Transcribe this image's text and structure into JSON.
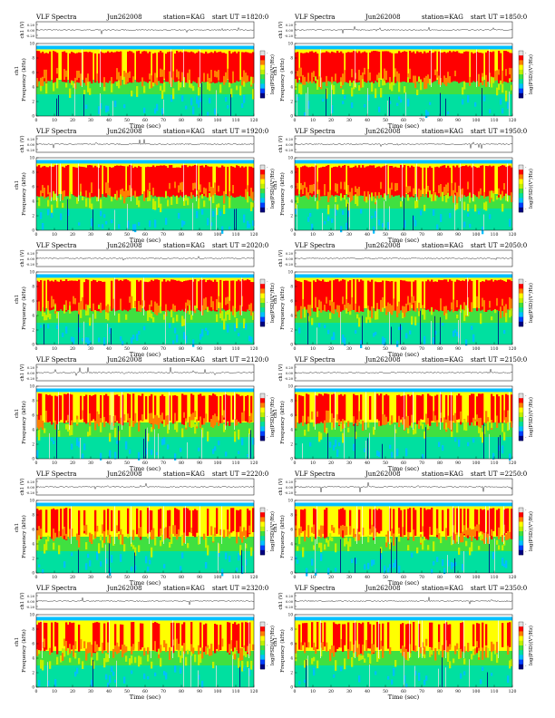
{
  "page": {
    "title_prefix": "VLF Spectra",
    "date_label": "Jun262008",
    "station_label": "station=KAG",
    "start_prefix": "start  UT  ="
  },
  "legend": {
    "colorbar_label": "log(PSD)(V²/Hz)",
    "colorbar_ticks": [
      "-",
      "-",
      "-"
    ],
    "colors": [
      "#000080",
      "#0040ff",
      "#00c0ff",
      "#00e0a0",
      "#40e040",
      "#c0f000",
      "#ffff00",
      "#ff8000",
      "#ff0000",
      "#e0e0e0"
    ]
  },
  "chart_data": [
    {
      "type": "heatmap",
      "panel": "1820",
      "title": "VLF Spectra",
      "date": "Jun262008",
      "station": "station=KAG",
      "start_ut": "1820:0",
      "xlabel": "Time  (sec)",
      "ylabel": "Frequency  (kHz)",
      "y2label": "ch1",
      "ts_label": "ch1 (V)",
      "ts_ticks": [
        "0.20",
        "0.00",
        "-0.20"
      ],
      "xlim": [
        0,
        120
      ],
      "ylim": [
        0,
        10
      ],
      "x_ticks": [
        0,
        10,
        20,
        30,
        40,
        50,
        60,
        70,
        80,
        90,
        100,
        110,
        120
      ],
      "y_ticks": [
        0,
        2,
        4,
        6,
        8,
        10
      ],
      "band_top_khz": 9.2,
      "intensity": "high"
    },
    {
      "type": "heatmap",
      "panel": "1850",
      "title": "VLF Spectra",
      "date": "Jun262008",
      "station": "station=KAG",
      "start_ut": "1850:0",
      "xlabel": "Time  (sec)",
      "ylabel": "Frequency  (kHz)",
      "y2label": "ch1",
      "ts_label": "ch1 (V)",
      "ts_ticks": [
        "0.20",
        "0.00",
        "-0.20"
      ],
      "xlim": [
        0,
        120
      ],
      "ylim": [
        0,
        10
      ],
      "x_ticks": [
        0,
        10,
        20,
        30,
        40,
        50,
        60,
        70,
        80,
        90,
        100,
        110,
        120
      ],
      "y_ticks": [
        0,
        2,
        4,
        6,
        8,
        10
      ],
      "band_top_khz": 9.2,
      "intensity": "high"
    },
    {
      "type": "heatmap",
      "panel": "1920",
      "title": "VLF Spectra",
      "date": "Jun262008",
      "station": "station=KAG",
      "start_ut": "1920:0",
      "xlabel": "Time  (sec)",
      "ylabel": "Frequency  (kHz)",
      "y2label": "ch1",
      "ts_label": "ch1 (V)",
      "ts_ticks": [
        "0.20",
        "0.00",
        "-0.20"
      ],
      "xlim": [
        0,
        120
      ],
      "ylim": [
        0,
        10
      ],
      "x_ticks": [
        0,
        10,
        20,
        30,
        40,
        50,
        60,
        70,
        80,
        90,
        100,
        110,
        120
      ],
      "y_ticks": [
        0,
        2,
        4,
        6,
        8,
        10
      ],
      "band_top_khz": 9.2,
      "intensity": "high"
    },
    {
      "type": "heatmap",
      "panel": "1950",
      "title": "VLF Spectra",
      "date": "Jun262008",
      "station": "station=KAG",
      "start_ut": "1950:0",
      "xlabel": "Time  (sec)",
      "ylabel": "Frequency  (kHz)",
      "y2label": "ch1",
      "ts_label": "ch1 (V)",
      "ts_ticks": [
        "0.20",
        "0.00",
        "-0.20"
      ],
      "xlim": [
        0,
        120
      ],
      "ylim": [
        0,
        10
      ],
      "x_ticks": [
        0,
        10,
        20,
        30,
        40,
        50,
        60,
        70,
        80,
        90,
        100,
        110,
        120
      ],
      "y_ticks": [
        0,
        2,
        4,
        6,
        8,
        10
      ],
      "band_top_khz": 9.2,
      "intensity": "high"
    },
    {
      "type": "heatmap",
      "panel": "2020",
      "title": "VLF Spectra",
      "date": "Jun262008",
      "station": "station=KAG",
      "start_ut": "2020:0",
      "xlabel": "Time  (sec)",
      "ylabel": "Frequency  (kHz)",
      "y2label": "ch1",
      "ts_label": "ch1 (V)",
      "ts_ticks": [
        "0.20",
        "0.00",
        "-0.20"
      ],
      "xlim": [
        0,
        120
      ],
      "ylim": [
        0,
        10
      ],
      "x_ticks": [
        0,
        10,
        20,
        30,
        40,
        50,
        60,
        70,
        80,
        90,
        100,
        110,
        120
      ],
      "y_ticks": [
        0,
        2,
        4,
        6,
        8,
        10
      ],
      "band_top_khz": 9.2,
      "intensity": "high"
    },
    {
      "type": "heatmap",
      "panel": "2050",
      "title": "VLF Spectra",
      "date": "Jun262008",
      "station": "station=KAG",
      "start_ut": "2050:0",
      "xlabel": "Time  (sec)",
      "ylabel": "Frequency  (kHz)",
      "y2label": "ch1",
      "ts_label": "ch1 (V)",
      "ts_ticks": [
        "0.20",
        "0.00",
        "-0.20"
      ],
      "xlim": [
        0,
        120
      ],
      "ylim": [
        0,
        10
      ],
      "x_ticks": [
        0,
        10,
        20,
        30,
        40,
        50,
        60,
        70,
        80,
        90,
        100,
        110,
        120
      ],
      "y_ticks": [
        0,
        2,
        4,
        6,
        8,
        10
      ],
      "band_top_khz": 9.2,
      "intensity": "high"
    },
    {
      "type": "heatmap",
      "panel": "2120",
      "title": "VLF Spectra",
      "date": "Jun262008",
      "station": "station=KAG",
      "start_ut": "2120:0",
      "xlabel": "Time  (sec)",
      "ylabel": "Frequency  (kHz)",
      "y2label": "ch1",
      "ts_label": "ch1 (V)",
      "ts_ticks": [
        "0.20",
        "0.00",
        "-0.20"
      ],
      "xlim": [
        0,
        120
      ],
      "ylim": [
        0,
        10
      ],
      "x_ticks": [
        0,
        10,
        20,
        30,
        40,
        50,
        60,
        70,
        80,
        90,
        100,
        110,
        120
      ],
      "y_ticks": [
        0,
        2,
        4,
        6,
        8,
        10
      ],
      "band_top_khz": 9.2,
      "intensity": "medium"
    },
    {
      "type": "heatmap",
      "panel": "2150",
      "title": "VLF Spectra",
      "date": "Jun262008",
      "station": "station=KAG",
      "start_ut": "2150:0",
      "xlabel": "Time  (sec)",
      "ylabel": "Frequency  (kHz)",
      "y2label": "ch1",
      "ts_label": "ch1 (V)",
      "ts_ticks": [
        "0.20",
        "0.00",
        "-0.20"
      ],
      "xlim": [
        0,
        120
      ],
      "ylim": [
        0,
        10
      ],
      "x_ticks": [
        0,
        10,
        20,
        30,
        40,
        50,
        60,
        70,
        80,
        90,
        100,
        110,
        120
      ],
      "y_ticks": [
        0,
        2,
        4,
        6,
        8,
        10
      ],
      "band_top_khz": 9.2,
      "intensity": "medium"
    },
    {
      "type": "heatmap",
      "panel": "2220",
      "title": "VLF Spectra",
      "date": "Jun262008",
      "station": "station=KAG",
      "start_ut": "2220:0",
      "xlabel": "Time  (sec)",
      "ylabel": "Frequency  (kHz)",
      "y2label": "ch1",
      "ts_label": "ch1 (V)",
      "ts_ticks": [
        "0.20",
        "0.00",
        "-0.20"
      ],
      "xlim": [
        0,
        120
      ],
      "ylim": [
        0,
        10
      ],
      "x_ticks": [
        0,
        10,
        20,
        30,
        40,
        50,
        60,
        70,
        80,
        90,
        100,
        110,
        120
      ],
      "y_ticks": [
        0,
        2,
        4,
        6,
        8,
        10
      ],
      "band_top_khz": 9.2,
      "intensity": "low"
    },
    {
      "type": "heatmap",
      "panel": "2250",
      "title": "VLF Spectra",
      "date": "Jun262008",
      "station": "station=KAG",
      "start_ut": "2250:0",
      "xlabel": "Time  (sec)",
      "ylabel": "Frequency  (kHz)",
      "y2label": "ch1",
      "ts_label": "ch1 (V)",
      "ts_ticks": [
        "0.20",
        "0.00",
        "-0.20"
      ],
      "xlim": [
        0,
        120
      ],
      "ylim": [
        0,
        10
      ],
      "x_ticks": [
        0,
        10,
        20,
        30,
        40,
        50,
        60,
        70,
        80,
        90,
        100,
        110,
        120
      ],
      "y_ticks": [
        0,
        2,
        4,
        6,
        8,
        10
      ],
      "band_top_khz": 9.2,
      "intensity": "low"
    },
    {
      "type": "heatmap",
      "panel": "2320",
      "title": "VLF Spectra",
      "date": "Jun262008",
      "station": "station=KAG",
      "start_ut": "2320:0",
      "xlabel": "Time  (sec)",
      "ylabel": "Frequency  (kHz)",
      "y2label": "ch1",
      "ts_label": "ch1 (V)",
      "ts_ticks": [
        "0.20",
        "0.00",
        "-0.20"
      ],
      "xlim": [
        0,
        120
      ],
      "ylim": [
        0,
        10
      ],
      "x_ticks": [
        0,
        10,
        20,
        30,
        40,
        50,
        60,
        70,
        80,
        90,
        100,
        110,
        120
      ],
      "y_ticks": [
        0,
        2,
        4,
        6,
        8,
        10
      ],
      "band_top_khz": 9.2,
      "intensity": "low"
    },
    {
      "type": "heatmap",
      "panel": "2350",
      "title": "VLF Spectra",
      "date": "Jun262008",
      "station": "station=KAG",
      "start_ut": "2350:0",
      "xlabel": "Time  (sec)",
      "ylabel": "Frequency  (kHz)",
      "y2label": "ch1",
      "ts_label": "ch1 (V)",
      "ts_ticks": [
        "0.20",
        "0.00",
        "-0.20"
      ],
      "xlim": [
        0,
        120
      ],
      "ylim": [
        0,
        10
      ],
      "x_ticks": [
        0,
        10,
        20,
        30,
        40,
        50,
        60,
        70,
        80,
        90,
        100,
        110,
        120
      ],
      "y_ticks": [
        0,
        2,
        4,
        6,
        8,
        10
      ],
      "band_top_khz": 9.2,
      "intensity": "low"
    }
  ]
}
